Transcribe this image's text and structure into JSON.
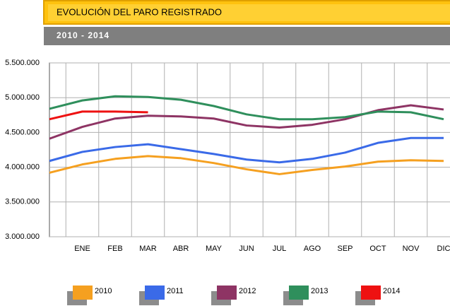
{
  "chart_data": {
    "type": "line",
    "title": "EVOLUCIÓN DEL PARO REGISTRADO",
    "subtitle": "2010 - 2014",
    "categories": [
      null,
      "ENE",
      "FEB",
      "MAR",
      "ABR",
      "MAY",
      "JUN",
      "JUL",
      "AGO",
      "SEP",
      "OCT",
      "NOV",
      "DIC"
    ],
    "series": [
      {
        "name": "2010",
        "color": "#f5a020",
        "values": [
          3920000,
          4040000,
          4120000,
          4160000,
          4130000,
          4060000,
          3970000,
          3900000,
          3960000,
          4010000,
          4080000,
          4100000,
          4090000
        ]
      },
      {
        "name": "2011",
        "color": "#3a6ae8",
        "values": [
          4090000,
          4220000,
          4290000,
          4330000,
          4260000,
          4190000,
          4110000,
          4070000,
          4120000,
          4210000,
          4350000,
          4420000,
          4420000
        ]
      },
      {
        "name": "2012",
        "color": "#8e3464",
        "values": [
          4410000,
          4580000,
          4700000,
          4740000,
          4730000,
          4700000,
          4600000,
          4570000,
          4610000,
          4690000,
          4820000,
          4890000,
          4830000
        ]
      },
      {
        "name": "2013",
        "color": "#2f8f5c",
        "values": [
          4840000,
          4960000,
          5020000,
          5010000,
          4970000,
          4880000,
          4760000,
          4690000,
          4690000,
          4720000,
          4800000,
          4790000,
          4690000
        ]
      },
      {
        "name": "2014",
        "color": "#ee1111",
        "values": [
          4690000,
          4800000,
          4800000,
          4790000,
          null,
          null,
          null,
          null,
          null,
          null,
          null,
          null,
          null
        ]
      }
    ],
    "ylim": [
      3000000,
      5500000
    ],
    "yticks": [
      {
        "value": 3000000,
        "label": "3.000.000"
      },
      {
        "value": 3500000,
        "label": "3.500.000"
      },
      {
        "value": 4000000,
        "label": "4.000.000"
      },
      {
        "value": 4500000,
        "label": "4.500.000"
      },
      {
        "value": 5000000,
        "label": "5.000.000"
      },
      {
        "value": 5500000,
        "label": "5.500.000"
      }
    ],
    "grid": true
  }
}
